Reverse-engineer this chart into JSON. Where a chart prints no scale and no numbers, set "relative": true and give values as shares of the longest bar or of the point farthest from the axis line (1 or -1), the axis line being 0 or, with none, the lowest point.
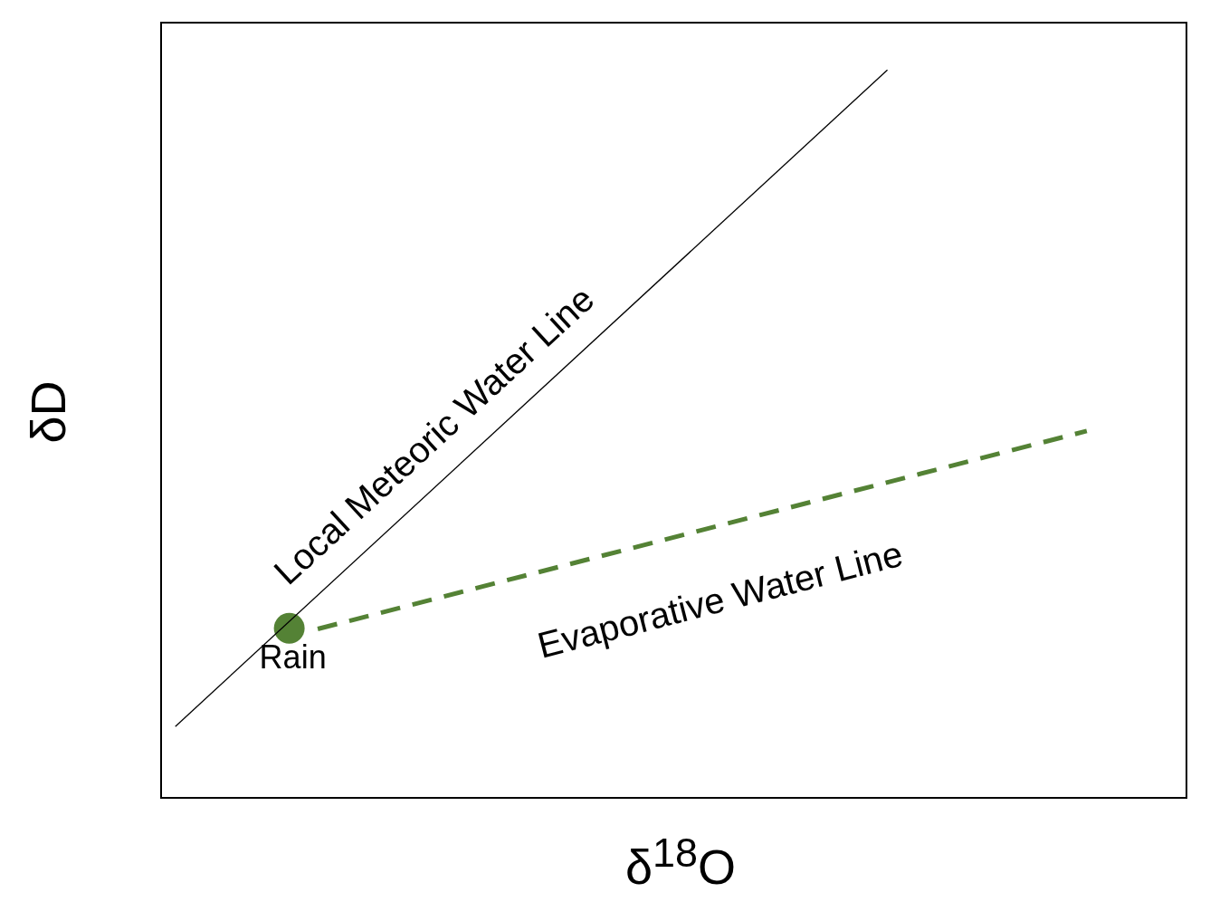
{
  "chart_data": {
    "type": "line",
    "relative": true,
    "xlabel": "δ$^{18}$O",
    "ylabel": "δD",
    "categories": [
      null,
      null,
      null,
      null,
      null,
      null,
      null,
      null,
      null,
      null,
      null,
      null,
      null,
      null,
      null,
      null,
      null,
      null,
      null,
      null,
      null,
      null,
      null,
      null,
      null,
      null,
      null,
      null,
      null,
      null,
      null,
      null,
      null,
      null,
      null,
      null
    ],
    "series": [
      {
        "name": "Local Meteoric Water Line",
        "color": "#000000",
        "line_style": "solid",
        "marker": "none",
        "values": [
          0.098,
          null,
          null,
          null,
          null,
          null,
          null,
          null,
          null,
          null,
          null,
          null,
          null,
          null,
          null,
          null,
          null,
          null,
          null,
          null,
          null,
          null,
          null,
          null,
          null,
          1.0,
          null,
          null,
          null,
          null,
          null,
          null,
          null,
          null,
          null,
          null
        ]
      },
      {
        "name": "Evaporative Water Line",
        "color": "#548235",
        "line_style": "dashed",
        "marker": "none",
        "values": [
          null,
          null,
          null,
          null,
          null,
          0.232,
          null,
          null,
          null,
          null,
          null,
          null,
          null,
          null,
          null,
          null,
          null,
          null,
          null,
          null,
          null,
          null,
          null,
          null,
          null,
          null,
          null,
          null,
          null,
          null,
          null,
          null,
          0.504,
          null,
          null,
          null
        ]
      },
      {
        "name": "Rain",
        "color": "#548235",
        "line_style": "solid",
        "marker": "circle",
        "values": [
          null,
          null,
          null,
          null,
          0.233,
          null,
          null,
          null,
          null,
          null,
          null,
          null,
          null,
          null,
          null,
          null,
          null,
          null,
          null,
          null,
          null,
          null,
          null,
          null,
          null,
          null,
          null,
          null,
          null,
          null,
          null,
          null,
          null,
          null,
          null,
          null
        ]
      }
    ]
  }
}
